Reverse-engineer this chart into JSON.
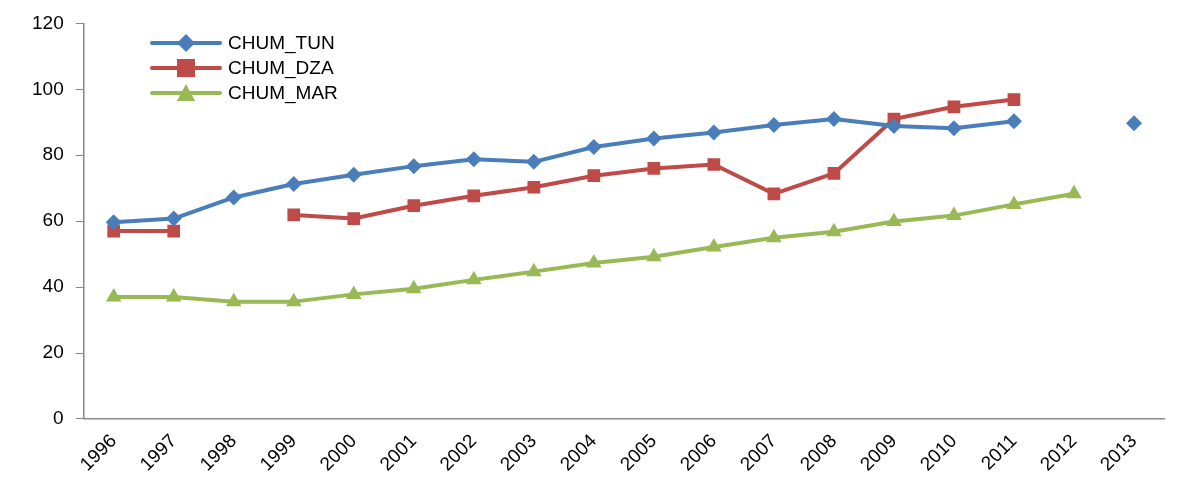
{
  "chart_data": {
    "type": "line",
    "categories": [
      "1996",
      "1997",
      "1998",
      "1999",
      "2000",
      "2001",
      "2002",
      "2003",
      "2004",
      "2005",
      "2006",
      "2007",
      "2008",
      "2009",
      "2010",
      "2011",
      "2012",
      "2013"
    ],
    "series": [
      {
        "name": "CHUM_TUN",
        "color": "#4a7ebb",
        "marker": "diamond",
        "values": [
          59.7,
          60.8,
          67.2,
          71.3,
          74.1,
          76.7,
          78.8,
          78,
          82.5,
          85.1,
          86.9,
          89.2,
          91,
          88.9,
          88.2,
          90.3,
          null,
          89.7
        ]
      },
      {
        "name": "CHUM_DZA",
        "color": "#be4b48",
        "marker": "square",
        "values": [
          57,
          57,
          null,
          61.9,
          60.8,
          64.7,
          67.7,
          70.3,
          73.8,
          76,
          77.2,
          68.3,
          74.5,
          91,
          94.7,
          96.9,
          null,
          null
        ]
      },
      {
        "name": "CHUM_MAR",
        "color": "#98b954",
        "marker": "triangle",
        "values": [
          37,
          37,
          35.6,
          35.6,
          37.8,
          39.5,
          42.2,
          44.7,
          47.3,
          49.2,
          52.2,
          55,
          56.8,
          59.9,
          61.7,
          65.1,
          68.3,
          null
        ]
      }
    ],
    "ylim": [
      0,
      120
    ],
    "yticks": [
      0,
      20,
      40,
      60,
      80,
      100,
      120
    ],
    "grid": false,
    "legend": "top left"
  }
}
